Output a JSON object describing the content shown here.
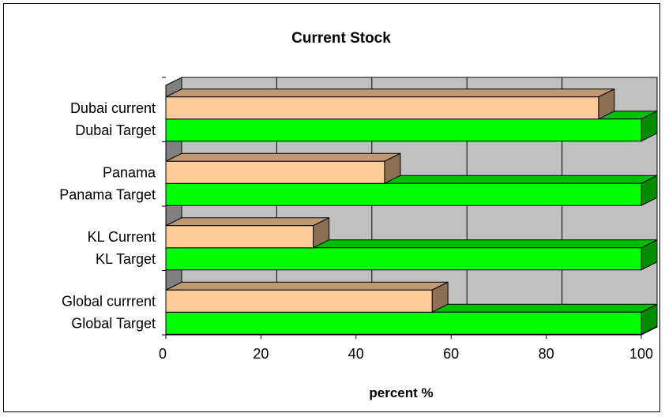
{
  "chart_data": {
    "type": "bar",
    "orientation": "horizontal",
    "title": "Current Stock",
    "xlabel": "percent %",
    "ylabel": "",
    "xlim": [
      0,
      100
    ],
    "xticks": [
      0,
      20,
      40,
      60,
      80,
      100
    ],
    "grid": true,
    "legend": "none",
    "groups": [
      {
        "bars": [
          {
            "label": "Global currrent",
            "value": 56,
            "color": "#ffcc99"
          },
          {
            "label": "Global Target",
            "value": 100,
            "color": "#00ff00"
          }
        ]
      },
      {
        "bars": [
          {
            "label": "KL Current",
            "value": 31,
            "color": "#ffcc99"
          },
          {
            "label": "KL Target",
            "value": 100,
            "color": "#00ff00"
          }
        ]
      },
      {
        "bars": [
          {
            "label": "Panama",
            "value": 46,
            "color": "#ffcc99"
          },
          {
            "label": "Panama Target",
            "value": 100,
            "color": "#00ff00"
          }
        ]
      },
      {
        "bars": [
          {
            "label": "Dubai current",
            "value": 91,
            "color": "#ffcc99"
          },
          {
            "label": "Dubai Target",
            "value": 100,
            "color": "#00ff00"
          }
        ]
      }
    ],
    "colors": {
      "wall": "#c0c0c0",
      "floor": "#808080"
    }
  }
}
